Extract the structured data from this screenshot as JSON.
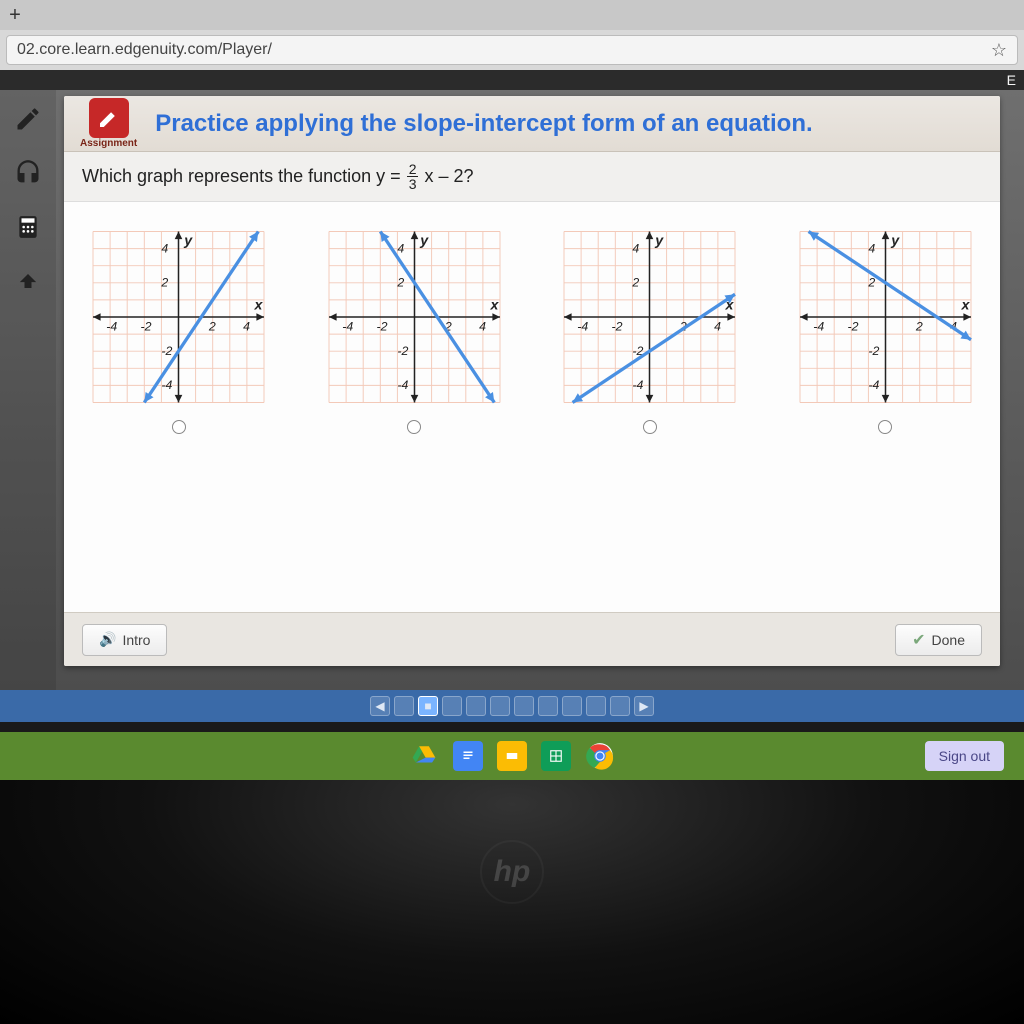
{
  "browser": {
    "url": "02.core.learn.edgenuity.com/Player/",
    "ext_label": "E"
  },
  "header": {
    "assignment_label": "Assignment",
    "title": "Practice applying the slope-intercept form of an equation."
  },
  "question": {
    "prefix": "Which graph represents the function y = ",
    "numerator": "2",
    "denominator": "3",
    "suffix": "x – 2?"
  },
  "graphs": {
    "axis_ticks_x": [
      "-4",
      "-2",
      "2",
      "4"
    ],
    "axis_ticks_y": [
      "4",
      "2",
      "-2",
      "-4"
    ],
    "x_label": "x",
    "y_label": "y",
    "xlim": [
      -5,
      5
    ],
    "ylim": [
      -5,
      5
    ],
    "grid_color": "#f3c9b8",
    "line_color": "#4a90e2",
    "line_width": 3.5,
    "options": [
      {
        "slope": 1.5,
        "intercept": -2
      },
      {
        "slope": -1.5,
        "intercept": 2
      },
      {
        "slope": 0.6667,
        "intercept": -2
      },
      {
        "slope": -0.6667,
        "intercept": 2
      }
    ]
  },
  "footer": {
    "intro_label": "Intro",
    "done_label": "Done"
  },
  "pager": {
    "total": 10,
    "current": 2
  },
  "shelf": {
    "signout": "Sign out"
  },
  "logo": "hp"
}
